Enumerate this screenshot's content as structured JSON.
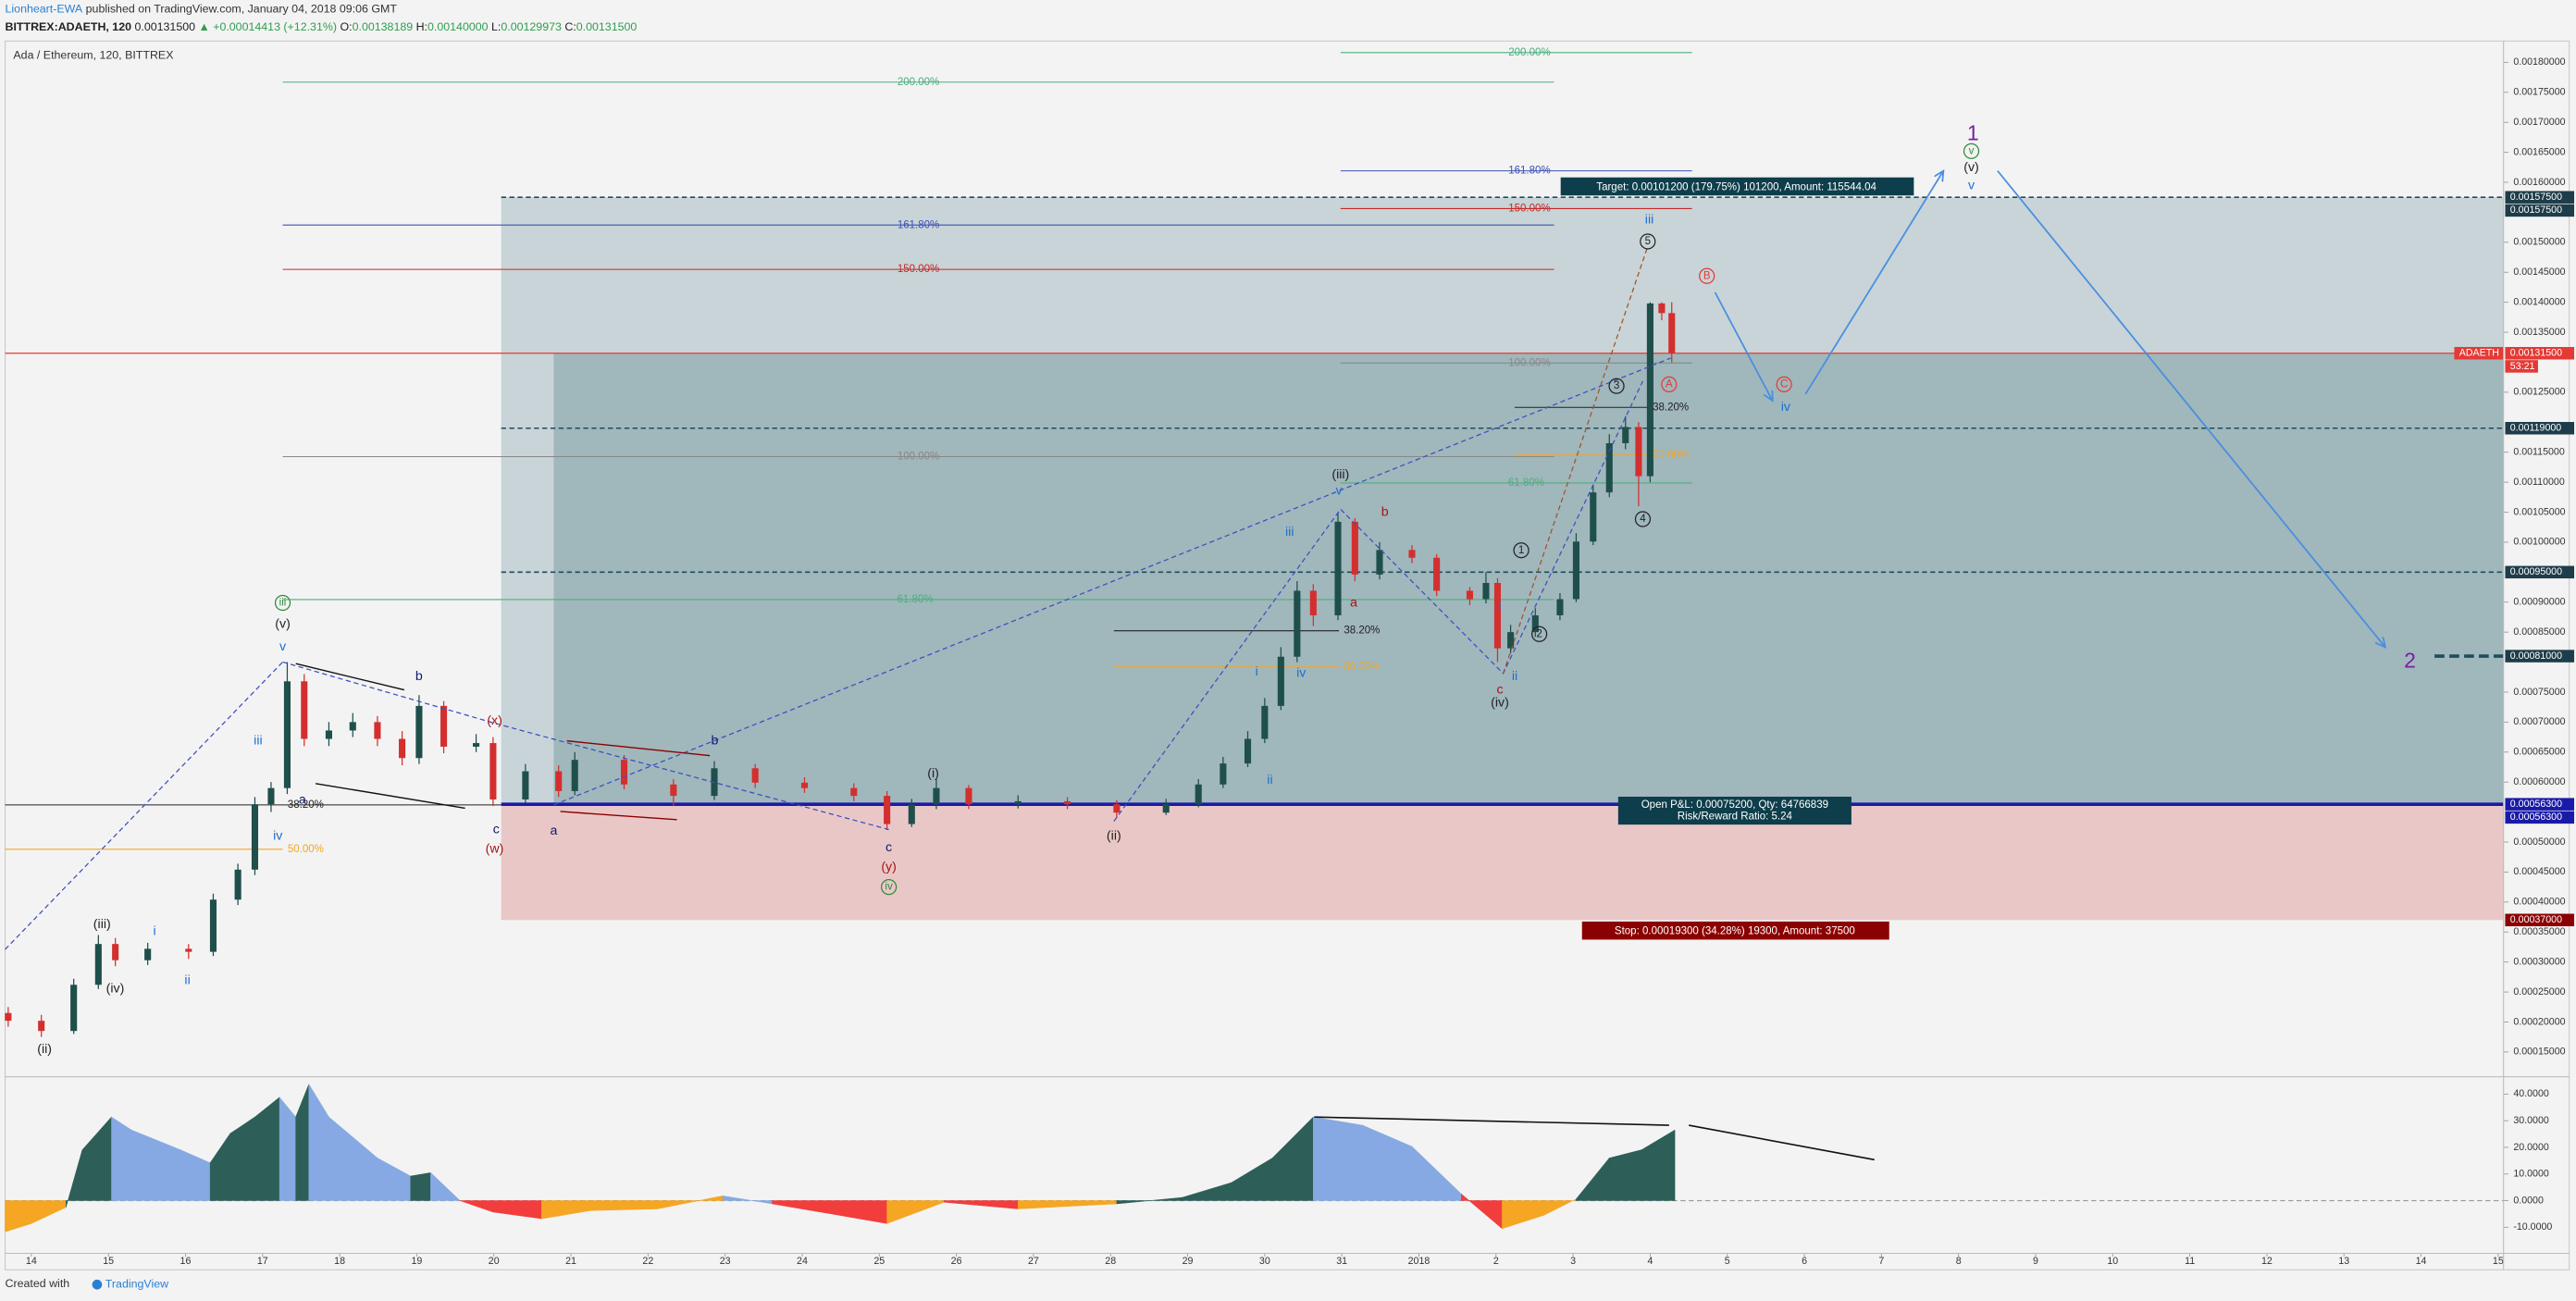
{
  "header": {
    "author": "Lionheart-EWA",
    "published": "published on TradingView.com, January 04, 2018 09:06 GMT",
    "symbol": "BITTREX:ADAETH, 120",
    "last": "0.00131500",
    "change": "▲ +0.00014413 (+12.31%)",
    "open_label": "O:",
    "open": "0.00138189",
    "high_label": "H:",
    "high": "0.00140000",
    "low_label": "L:",
    "low": "0.00129973",
    "close_label": "C:",
    "close": "0.00131500"
  },
  "footer": {
    "created": "Created with",
    "brand": "TradingView"
  },
  "chart_data": [
    {
      "type": "candlestick",
      "title": "Ada / Ethereum, 120, BITTREX",
      "up_color": "#1f4f4b",
      "down_color": "#d32f2f",
      "xlim": [
        -0.34,
        32.07
      ],
      "ylim": [
        0.00011,
        0.00183
      ],
      "yticks": [
        {
          "value": 0.00015,
          "label": "0.00015000"
        },
        {
          "value": 0.0002,
          "label": "0.00020000"
        },
        {
          "value": 0.00025,
          "label": "0.00025000"
        },
        {
          "value": 0.0003,
          "label": "0.00030000"
        },
        {
          "value": 0.00035,
          "label": "0.00035000"
        },
        {
          "value": 0.0004,
          "label": "0.00040000"
        },
        {
          "value": 0.00045,
          "label": "0.00045000"
        },
        {
          "value": 0.0005,
          "label": "0.00050000"
        },
        {
          "value": 0.0006,
          "label": "0.00060000"
        },
        {
          "value": 0.00065,
          "label": "0.00065000"
        },
        {
          "value": 0.0007,
          "label": "0.00070000"
        },
        {
          "value": 0.00075,
          "label": "0.00075000"
        },
        {
          "value": 0.00085,
          "label": "0.00085000"
        },
        {
          "value": 0.0009,
          "label": "0.00090000"
        },
        {
          "value": 0.001,
          "label": "0.00100000"
        },
        {
          "value": 0.00105,
          "label": "0.00105000"
        },
        {
          "value": 0.0011,
          "label": "0.00110000"
        },
        {
          "value": 0.00115,
          "label": "0.00115000"
        },
        {
          "value": 0.00125,
          "label": "0.00125000"
        },
        {
          "value": 0.00135,
          "label": "0.00135000"
        },
        {
          "value": 0.0014,
          "label": "0.00140000"
        },
        {
          "value": 0.00145,
          "label": "0.00145000"
        },
        {
          "value": 0.0015,
          "label": "0.00150000"
        },
        {
          "value": 0.0016,
          "label": "0.00160000"
        },
        {
          "value": 0.00165,
          "label": "0.00165000"
        },
        {
          "value": 0.0017,
          "label": "0.00170000"
        },
        {
          "value": 0.00175,
          "label": "0.00175000"
        },
        {
          "value": 0.0018,
          "label": "0.00180000"
        }
      ],
      "x": [
        -0.3,
        0.13,
        0.55,
        0.87,
        1.09,
        1.51,
        2.04,
        2.36,
        2.68,
        2.9,
        3.11,
        3.32,
        3.54,
        3.86,
        4.17,
        4.49,
        4.81,
        5.03,
        5.35,
        5.77,
        5.99,
        6.41,
        6.84,
        7.05,
        7.69,
        8.33,
        8.86,
        9.39,
        10.03,
        10.67,
        11.1,
        11.42,
        11.74,
        12.16,
        12.8,
        13.44,
        14.08,
        14.72,
        15.14,
        15.46,
        15.78,
        16.0,
        16.21,
        16.42,
        16.63,
        16.95,
        17.17,
        17.49,
        17.91,
        18.23,
        18.66,
        18.87,
        19.02,
        19.19,
        19.51,
        19.83,
        20.04,
        20.26,
        20.47,
        20.68,
        20.85,
        21.0,
        21.15,
        21.28
      ],
      "candles": [
        [
          0.000215,
          0.000225,
          0.000192,
          0.000202
        ],
        [
          0.000202,
          0.000212,
          0.000175,
          0.000185
        ],
        [
          0.000185,
          0.000272,
          0.00018,
          0.000262
        ],
        [
          0.000262,
          0.000345,
          0.000255,
          0.00033
        ],
        [
          0.00033,
          0.00034,
          0.000293,
          0.000303
        ],
        [
          0.000303,
          0.000332,
          0.000295,
          0.000322
        ],
        [
          0.000322,
          0.00033,
          0.000305,
          0.000317
        ],
        [
          0.000317,
          0.000414,
          0.00031,
          0.000404
        ],
        [
          0.000404,
          0.000464,
          0.000395,
          0.000454
        ],
        [
          0.000454,
          0.000575,
          0.000445,
          0.000563
        ],
        [
          0.000563,
          0.0006,
          0.00055,
          0.00059
        ],
        [
          0.00059,
          0.0008,
          0.00058,
          0.000768
        ],
        [
          0.000768,
          0.00078,
          0.00066,
          0.000672
        ],
        [
          0.000672,
          0.0007,
          0.00066,
          0.000686
        ],
        [
          0.000686,
          0.000715,
          0.000675,
          0.0007
        ],
        [
          0.0007,
          0.00071,
          0.00066,
          0.000672
        ],
        [
          0.000672,
          0.000685,
          0.000628,
          0.00064
        ],
        [
          0.00064,
          0.000745,
          0.00063,
          0.000727
        ],
        [
          0.000727,
          0.000735,
          0.000648,
          0.000659
        ],
        [
          0.000659,
          0.00068,
          0.00065,
          0.000665
        ],
        [
          0.000665,
          0.000675,
          0.00056,
          0.000571
        ],
        [
          0.000571,
          0.00063,
          0.000565,
          0.000618
        ],
        [
          0.000618,
          0.000628,
          0.000575,
          0.000585
        ],
        [
          0.000585,
          0.00065,
          0.000578,
          0.000637
        ],
        [
          0.000637,
          0.000645,
          0.000588,
          0.000596
        ],
        [
          0.000596,
          0.000605,
          0.00056,
          0.000577
        ],
        [
          0.000577,
          0.000635,
          0.00057,
          0.000623
        ],
        [
          0.000623,
          0.00063,
          0.00059,
          0.000599
        ],
        [
          0.000599,
          0.000608,
          0.000582,
          0.00059
        ],
        [
          0.00059,
          0.000598,
          0.000568,
          0.000577
        ],
        [
          0.000577,
          0.000585,
          0.00052,
          0.00053
        ],
        [
          0.00053,
          0.000572,
          0.000525,
          0.000563
        ],
        [
          0.000563,
          0.000605,
          0.000555,
          0.00059
        ],
        [
          0.00059,
          0.000595,
          0.000555,
          0.000563
        ],
        [
          0.000563,
          0.000578,
          0.000556,
          0.000568
        ],
        [
          0.000568,
          0.000575,
          0.000555,
          0.000563
        ],
        [
          0.000563,
          0.00057,
          0.00054,
          0.000549
        ],
        [
          0.000549,
          0.000572,
          0.000545,
          0.000563
        ],
        [
          0.000563,
          0.000605,
          0.000558,
          0.000596
        ],
        [
          0.000596,
          0.000642,
          0.00059,
          0.000631
        ],
        [
          0.000631,
          0.000685,
          0.000625,
          0.000672
        ],
        [
          0.000672,
          0.00074,
          0.000665,
          0.000727
        ],
        [
          0.000727,
          0.000825,
          0.00072,
          0.000809
        ],
        [
          0.000809,
          0.000935,
          0.0008,
          0.000919
        ],
        [
          0.000919,
          0.00093,
          0.00086,
          0.000878
        ],
        [
          0.000878,
          0.00105,
          0.00087,
          0.001034
        ],
        [
          0.001034,
          0.00104,
          0.000935,
          0.000946
        ],
        [
          0.000946,
          0.001,
          0.000938,
          0.000987
        ],
        [
          0.000987,
          0.000995,
          0.000965,
          0.000974
        ],
        [
          0.000974,
          0.00098,
          0.00091,
          0.000919
        ],
        [
          0.000919,
          0.000925,
          0.000895,
          0.000905
        ],
        [
          0.000905,
          0.00095,
          0.000898,
          0.000932
        ],
        [
          0.000932,
          0.00094,
          0.0008,
          0.000823
        ],
        [
          0.000823,
          0.000862,
          0.000815,
          0.00085
        ],
        [
          0.00085,
          0.00089,
          0.000842,
          0.000878
        ],
        [
          0.000878,
          0.000915,
          0.00087,
          0.000905
        ],
        [
          0.000905,
          0.001015,
          0.0009,
          0.001001
        ],
        [
          0.001001,
          0.001095,
          0.000995,
          0.001083
        ],
        [
          0.001083,
          0.00118,
          0.001075,
          0.001165
        ],
        [
          0.001165,
          0.00121,
          0.001155,
          0.001192
        ],
        [
          0.001192,
          0.0012,
          0.00106,
          0.00111
        ],
        [
          0.00111,
          0.0014,
          0.0011,
          0.001398
        ],
        [
          0.001398,
          0.0014,
          0.00137,
          0.00138189
        ],
        [
          0.00138189,
          0.0014,
          0.00129973,
          0.001315
        ]
      ],
      "last": {
        "symbol": "ADAETH",
        "value": 0.001315,
        "label": "0.00131500",
        "countdown": "53:21"
      },
      "levels": [
        {
          "value": 0.001575,
          "label": "0.00157500"
        },
        {
          "value": 0.001575,
          "label": "0.00157500"
        },
        {
          "value": 0.00119,
          "label": "0.00119000"
        },
        {
          "value": 0.00095,
          "label": "0.00095000"
        },
        {
          "value": 0.00081,
          "label": "0.00081000"
        },
        {
          "value": 0.000563,
          "label": "0.00056300"
        },
        {
          "value": 0.000563,
          "label": "0.00056300"
        },
        {
          "value": 0.00037,
          "label": "0.00037000"
        }
      ],
      "target": "Target: 0.00101200 (179.75%) 101200, Amount: 115544.04",
      "open_pnl": "Open P&L: 0.00075200, Qty: 64766839",
      "risk_reward": "Risk/Reward Ratio: 5.24",
      "stop": "Stop: 0.00019300 (34.28%) 19300, Amount: 37500",
      "fib_labels": [
        "200.00%",
        "161.80%",
        "150.00%",
        "100.00%",
        "61.80%",
        "38.20%",
        "50.00%",
        "200.00%",
        "161.80%",
        "150.00%",
        "100.00%",
        "61.80%",
        "38.20%",
        "50.00%",
        "38.20%",
        "50.00%"
      ],
      "annotations": [
        "(ii)",
        "(iii)",
        "(iv)",
        "i",
        "ii",
        "iii",
        "iv",
        "v",
        "(v)",
        "iii",
        "a",
        "b",
        "c",
        "(w)",
        "(x)",
        "a",
        "b",
        "c",
        "(y)",
        "iv",
        "(i)",
        "(ii)",
        "i",
        "ii",
        "iii",
        "iv",
        "v",
        "(iii)",
        "a",
        "b",
        "i",
        "c",
        "ii",
        "(iv)",
        "1",
        "2",
        "3",
        "4",
        "5",
        "iii",
        "B",
        "A",
        "C",
        "iv",
        "1",
        "v",
        "(v)",
        "v",
        "2"
      ]
    },
    {
      "type": "area",
      "colors": {
        "rising_positive": "#2d5f58",
        "falling_positive": "#86a9e3",
        "falling_negative": "#f23d3d",
        "rising_negative": "#f5a623"
      },
      "xlim": [
        -0.34,
        32.07
      ],
      "ylim": [
        -19.8,
        46.2
      ],
      "yticks": [
        {
          "value": -10,
          "label": "-10.0000"
        },
        {
          "value": 0,
          "label": "0.0000"
        },
        {
          "value": 10,
          "label": "10.0000"
        },
        {
          "value": 20,
          "label": "20.0000"
        },
        {
          "value": 30,
          "label": "30.0000"
        },
        {
          "value": 40,
          "label": "40.0000"
        }
      ],
      "xticks": [
        {
          "value": 0,
          "label": "14"
        },
        {
          "value": 1,
          "label": "15"
        },
        {
          "value": 2,
          "label": "16"
        },
        {
          "value": 3,
          "label": "17"
        },
        {
          "value": 4,
          "label": "18"
        },
        {
          "value": 5,
          "label": "19"
        },
        {
          "value": 6,
          "label": "20"
        },
        {
          "value": 7,
          "label": "21"
        },
        {
          "value": 8,
          "label": "22"
        },
        {
          "value": 9,
          "label": "23"
        },
        {
          "value": 10,
          "label": "24"
        },
        {
          "value": 11,
          "label": "25"
        },
        {
          "value": 12,
          "label": "26"
        },
        {
          "value": 13,
          "label": "27"
        },
        {
          "value": 14,
          "label": "28"
        },
        {
          "value": 15,
          "label": "29"
        },
        {
          "value": 16,
          "label": "30"
        },
        {
          "value": 17,
          "label": "31"
        },
        {
          "value": 18,
          "label": "2018"
        },
        {
          "value": 19,
          "label": "2"
        },
        {
          "value": 20,
          "label": "3"
        },
        {
          "value": 21,
          "label": "4"
        },
        {
          "value": 22,
          "label": "5"
        },
        {
          "value": 23,
          "label": "6"
        },
        {
          "value": 24,
          "label": "7"
        },
        {
          "value": 25,
          "label": "8"
        },
        {
          "value": 26,
          "label": "9"
        },
        {
          "value": 27,
          "label": "10"
        },
        {
          "value": 28,
          "label": "11"
        },
        {
          "value": 29,
          "label": "12"
        },
        {
          "value": 30,
          "label": "13"
        },
        {
          "value": 31,
          "label": "14"
        },
        {
          "value": 32,
          "label": "15"
        }
      ],
      "x": [
        -0.34,
        0.0,
        0.45,
        0.66,
        1.04,
        1.3,
        1.94,
        2.32,
        2.58,
        2.9,
        3.22,
        3.43,
        3.6,
        3.86,
        4.49,
        4.92,
        5.18,
        5.56,
        5.99,
        6.62,
        7.26,
        8.12,
        8.97,
        9.61,
        10.24,
        11.1,
        11.84,
        12.8,
        14.08,
        14.93,
        15.57,
        16.1,
        16.63,
        17.27,
        17.91,
        18.55,
        19.08,
        19.62,
        20.04,
        20.47,
        20.89,
        21.32
      ],
      "values": [
        -11.7,
        -8.6,
        -2.5,
        19,
        31.4,
        26.5,
        19,
        14.2,
        25.2,
        31.4,
        38.8,
        31.4,
        43.7,
        31.4,
        16,
        9.2,
        10.5,
        0,
        -4.3,
        -6.8,
        -3.7,
        -3.1,
        1.8,
        -1.2,
        -4.3,
        -8.6,
        -0.6,
        -3.1,
        -1.2,
        1.2,
        6.8,
        16,
        31.4,
        28.3,
        20.3,
        2.5,
        -10.5,
        -5.5,
        0.6,
        16,
        19.1,
        26.5
      ]
    }
  ]
}
